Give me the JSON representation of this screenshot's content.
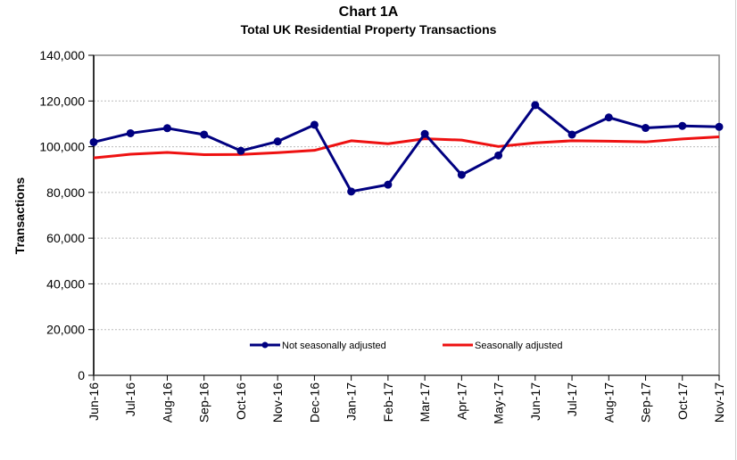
{
  "chart_data": {
    "type": "line",
    "title": "Chart 1A",
    "subtitle": "Total UK Residential Property Transactions",
    "xlabel": "",
    "ylabel": "Transactions",
    "ylim": [
      0,
      140000
    ],
    "yticks": [
      "0",
      "20,000",
      "40,000",
      "60,000",
      "80,000",
      "100,000",
      "120,000",
      "140,000"
    ],
    "ytick_values": [
      0,
      20000,
      40000,
      60000,
      80000,
      100000,
      120000,
      140000
    ],
    "grid": true,
    "legend_position": "bottom-inside",
    "categories": [
      "Jun-16",
      "Jul-16",
      "Aug-16",
      "Sep-16",
      "Oct-16",
      "Nov-16",
      "Dec-16",
      "Jan-17",
      "Feb-17",
      "Mar-17",
      "Apr-17",
      "May-17",
      "Jun-17",
      "Jul-17",
      "Aug-17",
      "Sep-17",
      "Oct-17",
      "Nov-17"
    ],
    "series": [
      {
        "name": "Not seasonally adjusted",
        "color": "#000080",
        "markers": true,
        "values": [
          102000,
          105900,
          108100,
          105300,
          98200,
          102300,
          109600,
          80400,
          83400,
          105600,
          87700,
          96200,
          118200,
          105300,
          112800,
          108200,
          109100,
          108700
        ]
      },
      {
        "name": "Seasonally adjusted",
        "color": "#ee1111",
        "markers": false,
        "values": [
          95100,
          96700,
          97500,
          96500,
          96600,
          97400,
          98400,
          102600,
          101300,
          103500,
          102900,
          100100,
          101700,
          102600,
          102400,
          102100,
          103400,
          104300
        ]
      }
    ]
  }
}
